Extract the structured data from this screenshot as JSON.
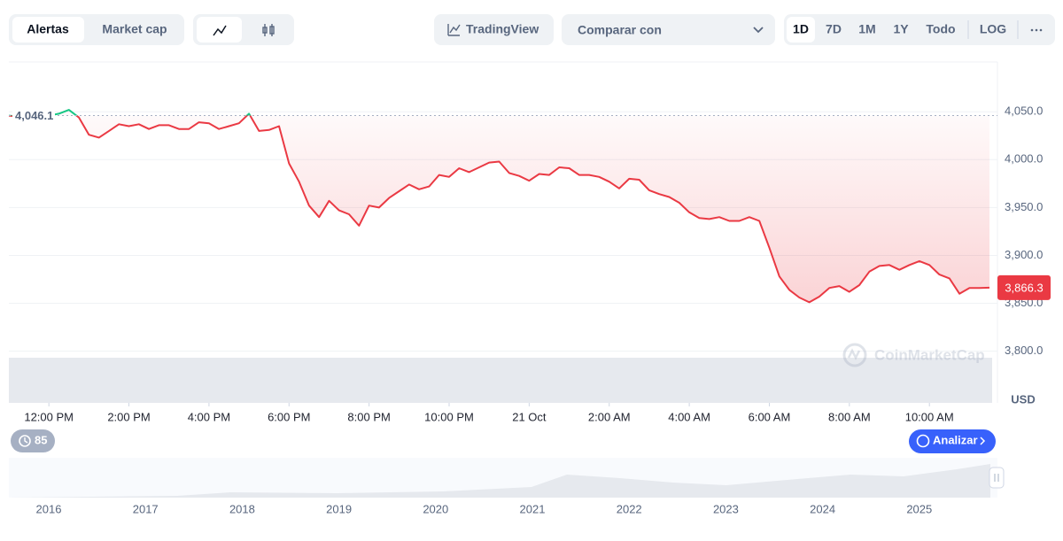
{
  "toolbar": {
    "tabs": [
      "Alertas",
      "Market cap"
    ],
    "tradingview": "TradingView",
    "compare": "Comparar con",
    "ranges": [
      "1D",
      "7D",
      "1M",
      "1Y",
      "Todo"
    ],
    "log": "LOG"
  },
  "chart_data": {
    "type": "line",
    "x": [
      11,
      11.25,
      11.5,
      11.75,
      12,
      12.25,
      12.5,
      12.75,
      13,
      13.25,
      13.5,
      13.75,
      14,
      14.25,
      14.5,
      14.75,
      15,
      15.25,
      15.5,
      15.75,
      16,
      16.25,
      16.5,
      16.75,
      17,
      17.25,
      17.5,
      17.75,
      18,
      18.25,
      18.5,
      18.75,
      19,
      19.25,
      19.5,
      19.75,
      20,
      20.25,
      20.5,
      20.75,
      21,
      21.25,
      21.5,
      21.75,
      22,
      22.25,
      22.5,
      22.75,
      23,
      23.25,
      23.5,
      23.75,
      24,
      24.25,
      24.5,
      24.75,
      25,
      25.25,
      25.5,
      25.75,
      26,
      26.25,
      26.5,
      26.75,
      27,
      27.25,
      27.5,
      27.75,
      28,
      28.25,
      28.5,
      28.75,
      29,
      29.25,
      29.5,
      29.75,
      30,
      30.25,
      30.5,
      30.75,
      31,
      31.25,
      31.5,
      31.75,
      32,
      32.25,
      32.5,
      32.75,
      33,
      33.25,
      33.5,
      33.75,
      34,
      34.25,
      34.5,
      34.75,
      35,
      35.25,
      35.5
    ],
    "series": [
      {
        "color": "#ea3943",
        "up_color": "#16c784",
        "values": [
          4046,
          4045,
          4044,
          4044,
          4046,
          4048,
          4052,
          4044,
          4026,
          4023,
          4030,
          4037,
          4035,
          4037,
          4032,
          4036,
          4036,
          4032,
          4032,
          4039,
          4038,
          4032,
          4035,
          4038,
          4048,
          4030,
          4031,
          4035,
          3996,
          3977,
          3952,
          3940,
          3957,
          3947,
          3943,
          3931,
          3952,
          3950,
          3960,
          3967,
          3974,
          3969,
          3972,
          3984,
          3982,
          3991,
          3987,
          3992,
          3997,
          3998,
          3986,
          3983,
          3978,
          3985,
          3984,
          3992,
          3991,
          3984,
          3984,
          3982,
          3977,
          3970,
          3980,
          3979,
          3968,
          3964,
          3961,
          3955,
          3945,
          3939,
          3938,
          3940,
          3936,
          3936,
          3940,
          3936,
          3908,
          3878,
          3864,
          3856,
          3851,
          3857,
          3866,
          3868,
          3862,
          3869,
          3883,
          3889,
          3890,
          3885,
          3890,
          3894,
          3890,
          3880,
          3876,
          3860,
          3866,
          3866,
          3866.3
        ]
      }
    ],
    "xlim": [
      11,
      35.7
    ],
    "xticks": [
      {
        "value": 12,
        "label": "12:00 PM"
      },
      {
        "value": 14,
        "label": "2:00 PM"
      },
      {
        "value": 16,
        "label": "4:00 PM"
      },
      {
        "value": 18,
        "label": "6:00 PM"
      },
      {
        "value": 20,
        "label": "8:00 PM"
      },
      {
        "value": 22,
        "label": "10:00 PM"
      },
      {
        "value": 24,
        "label": "21 Oct"
      },
      {
        "value": 26,
        "label": "2:00 AM"
      },
      {
        "value": 28,
        "label": "4:00 AM"
      },
      {
        "value": 30,
        "label": "6:00 AM"
      },
      {
        "value": 32,
        "label": "8:00 AM"
      },
      {
        "value": 34,
        "label": "10:00 AM"
      }
    ],
    "ylim": [
      3746,
      4102
    ],
    "yticks": [
      {
        "value": 3800,
        "label": "3,800.0"
      },
      {
        "value": 3850,
        "label": "3,850.0"
      },
      {
        "value": 3900,
        "label": "3,900.0"
      },
      {
        "value": 3950,
        "label": "3,950.0"
      },
      {
        "value": 4000,
        "label": "4,000.0"
      },
      {
        "value": 4050,
        "label": "4,050.0"
      }
    ],
    "y_unit": "USD",
    "grid": true,
    "reference": {
      "value": 4046.1,
      "label": "4,046.1"
    },
    "last": {
      "value": 3866.3,
      "label": "3,866.3"
    },
    "watermark": "CoinMarketCap"
  },
  "navigator": {
    "years": [
      2016,
      2017,
      2018,
      2019,
      2020,
      2021,
      2022,
      2023,
      2024,
      2025
    ]
  },
  "badges": {
    "history": "85",
    "analyze": "Analizar"
  }
}
